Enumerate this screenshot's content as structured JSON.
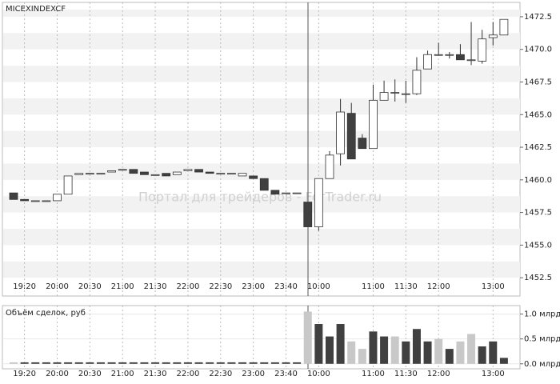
{
  "chart_data": [
    {
      "type": "candlestick",
      "title": "MICEXINDEXCF",
      "watermark": "Портал для трейдеров - ForTrader.ru",
      "categories": [
        null,
        "19:20",
        null,
        null,
        "20:00",
        null,
        null,
        "20:30",
        null,
        null,
        "21:00",
        null,
        null,
        "21:30",
        null,
        null,
        "22:00",
        null,
        null,
        "22:30",
        null,
        null,
        "23:00",
        null,
        null,
        "23:40",
        null,
        null,
        "10:00",
        null,
        null,
        null,
        null,
        "11:00",
        null,
        null,
        "11:30",
        null,
        null,
        "12:00",
        null,
        null,
        null,
        null,
        "13:00",
        null
      ],
      "open": [
        1459.0,
        1458.5,
        1458.4,
        1458.4,
        1458.4,
        1458.9,
        1460.4,
        1460.5,
        1460.5,
        1460.6,
        1460.8,
        1460.8,
        1460.6,
        1460.4,
        1460.5,
        1460.4,
        1460.7,
        1460.8,
        1460.6,
        1460.5,
        1460.5,
        1460.3,
        1460.3,
        1460.1,
        1459.2,
        1459.0,
        1459.0,
        1458.3,
        1456.4,
        1460.1,
        1462.0,
        1465.1,
        1463.2,
        1462.4,
        1466.1,
        1466.7,
        1466.6,
        1466.6,
        1468.5,
        1469.6,
        1469.6,
        1469.6,
        1469.2,
        1469.1,
        1470.9,
        1471.1
      ],
      "high": [
        1459.0,
        1458.5,
        1458.4,
        1458.4,
        1458.9,
        1460.3,
        1460.5,
        1460.5,
        1460.5,
        1460.7,
        1460.8,
        1460.8,
        1460.6,
        1460.4,
        1460.5,
        1460.6,
        1460.8,
        1460.8,
        1460.6,
        1460.5,
        1460.5,
        1460.5,
        1460.3,
        1460.1,
        1459.2,
        1459.0,
        1459.0,
        1458.3,
        1460.1,
        1462.2,
        1466.2,
        1465.9,
        1463.5,
        1467.3,
        1467.6,
        1467.7,
        1467.6,
        1469.4,
        1469.9,
        1470.5,
        1469.8,
        1470.4,
        1472.1,
        1471.5,
        1472.1,
        1472.3
      ],
      "low": [
        1458.5,
        1458.4,
        1458.4,
        1458.4,
        1458.4,
        1458.9,
        1460.4,
        1460.5,
        1460.5,
        1460.6,
        1460.8,
        1460.5,
        1460.4,
        1460.4,
        1460.3,
        1460.4,
        1460.7,
        1460.6,
        1460.5,
        1460.5,
        1460.5,
        1460.3,
        1460.1,
        1459.2,
        1458.9,
        1459.0,
        1459.0,
        1456.4,
        1456.1,
        1460.1,
        1461.1,
        1461.6,
        1462.4,
        1462.4,
        1466.1,
        1466.0,
        1465.9,
        1466.5,
        1468.5,
        1469.6,
        1469.3,
        1469.2,
        1468.8,
        1468.9,
        1470.3,
        1471.1
      ],
      "close": [
        1458.5,
        1458.4,
        1458.4,
        1458.4,
        1458.9,
        1460.3,
        1460.5,
        1460.5,
        1460.5,
        1460.7,
        1460.8,
        1460.5,
        1460.4,
        1460.4,
        1460.3,
        1460.6,
        1460.8,
        1460.6,
        1460.5,
        1460.5,
        1460.5,
        1460.5,
        1460.1,
        1459.2,
        1458.9,
        1459.0,
        1459.0,
        1456.4,
        1460.1,
        1461.9,
        1465.2,
        1461.6,
        1462.4,
        1466.1,
        1466.7,
        1466.7,
        1466.6,
        1468.4,
        1469.6,
        1469.6,
        1469.6,
        1469.2,
        1469.2,
        1470.8,
        1471.1,
        1472.3
      ],
      "up_color": "#ffffff",
      "down_color": "#404040",
      "ylim": [
        1451.1,
        1473.6
      ],
      "yticks": [
        1452.5,
        {
          "value": 1455,
          "label": "1455.0"
        },
        1457.5,
        {
          "value": 1460,
          "label": "1460.0"
        },
        1462.5,
        {
          "value": 1465,
          "label": "1465.0"
        },
        1467.5,
        {
          "value": 1470,
          "label": "1470.0"
        },
        1472.5
      ]
    },
    {
      "type": "bar",
      "title": "Объём сделок, руб",
      "values": [
        0.03,
        0.03,
        0.03,
        0.03,
        0.03,
        0.03,
        0.03,
        0.03,
        0.03,
        0.03,
        0.03,
        0.03,
        0.03,
        0.03,
        0.03,
        0.03,
        0.03,
        0.03,
        0.03,
        0.03,
        0.03,
        0.03,
        0.03,
        0.03,
        0.03,
        0.03,
        0.03,
        1.05,
        0.8,
        0.55,
        0.8,
        0.45,
        0.3,
        0.65,
        0.55,
        0.55,
        0.45,
        0.7,
        0.45,
        0.5,
        0.3,
        0.45,
        0.6,
        0.35,
        0.45,
        0.12
      ],
      "colors": [
        "#c8c8c8",
        "#404040",
        "#404040",
        "#404040",
        "#404040",
        "#404040",
        "#404040",
        "#404040",
        "#404040",
        "#404040",
        "#404040",
        "#404040",
        "#404040",
        "#404040",
        "#404040",
        "#404040",
        "#404040",
        "#404040",
        "#404040",
        "#404040",
        "#404040",
        "#404040",
        "#404040",
        "#404040",
        "#404040",
        "#404040",
        "#404040",
        "#c8c8c8",
        "#404040",
        "#404040",
        "#404040",
        "#c8c8c8",
        "#c8c8c8",
        "#404040",
        "#404040",
        "#c8c8c8",
        "#404040",
        "#404040",
        "#404040",
        "#c8c8c8",
        "#404040",
        "#c8c8c8",
        "#c8c8c8",
        "#404040",
        "#404040",
        "#404040"
      ],
      "ylim": [
        -0.1,
        1.17
      ],
      "yticks": [
        {
          "value": 0,
          "label": "0.0 млрд"
        },
        {
          "value": 0.5,
          "label": "0.5 млрд"
        },
        {
          "value": 1,
          "label": "1.0 млрд"
        }
      ]
    }
  ]
}
